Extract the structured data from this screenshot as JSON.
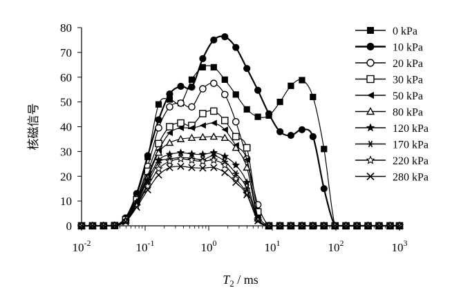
{
  "chart_data": {
    "type": "line",
    "title": "",
    "xlabel": "T2 / ms",
    "xlabel_parts": {
      "main": "T",
      "subscript": "2",
      "rest": " / ms"
    },
    "ylabel": "核磁信号",
    "x_scale": "log",
    "xlim": [
      0.01,
      1000
    ],
    "ylim": [
      0,
      80
    ],
    "x_ticks": [
      {
        "base": "10",
        "exp": "-2",
        "value": 0.01
      },
      {
        "base": "10",
        "exp": "-1",
        "value": 0.1
      },
      {
        "base": "10",
        "exp": "0",
        "value": 1
      },
      {
        "base": "10",
        "exp": "1",
        "value": 10
      },
      {
        "base": "10",
        "exp": "2",
        "value": 100
      },
      {
        "base": "10",
        "exp": "3",
        "value": 1000
      }
    ],
    "y_ticks": [
      "0",
      "10",
      "20",
      "30",
      "40",
      "50",
      "60",
      "70",
      "80"
    ],
    "grid": false,
    "legend_position": "right",
    "x": [
      0.01,
      0.0149,
      0.0222,
      0.0331,
      0.0494,
      0.0736,
      0.11,
      0.163,
      0.243,
      0.363,
      0.541,
      0.806,
      1.2,
      1.79,
      2.67,
      3.98,
      5.93,
      8.84,
      13.2,
      19.6,
      29.3,
      43.6,
      65,
      96.9,
      144,
      215,
      321,
      478,
      713,
      1000
    ],
    "series": [
      {
        "name": "0 kPa",
        "marker": "filled-square",
        "values": [
          0,
          0,
          0,
          0.1,
          2.8,
          12.2,
          27.8,
          49,
          51,
          49.5,
          59,
          64,
          64,
          59,
          53,
          47,
          44,
          44.5,
          50,
          56.5,
          58.8,
          52,
          31,
          0,
          0,
          0,
          0,
          0,
          0,
          0
        ]
      },
      {
        "name": "10 kPa",
        "marker": "filled-circle",
        "values": [
          0,
          0,
          0,
          0.1,
          3.2,
          13,
          28.3,
          42.8,
          53.2,
          56.3,
          56,
          67.5,
          75,
          76.3,
          72,
          63.5,
          54.7,
          45.2,
          38,
          36.5,
          38.8,
          36,
          15,
          0,
          0,
          0,
          0,
          0,
          0,
          0
        ]
      },
      {
        "name": "20 kPa",
        "marker": "open-circle",
        "values": [
          0,
          0,
          0,
          0.1,
          2.5,
          11,
          24,
          39.5,
          48,
          49.5,
          48,
          55.3,
          57.5,
          53,
          42,
          27,
          8.5,
          0,
          0,
          0,
          0,
          0,
          0,
          0,
          0,
          0,
          0,
          0,
          0,
          0
        ]
      },
      {
        "name": "30 kPa",
        "marker": "open-square",
        "values": [
          0,
          0,
          0,
          0.1,
          2.4,
          10.5,
          22,
          33.2,
          40,
          41.5,
          40.5,
          45.3,
          46.3,
          42.5,
          36,
          31.5,
          5.6,
          0,
          0,
          0,
          0,
          0,
          0,
          0,
          0,
          0,
          0,
          0,
          0,
          0
        ]
      },
      {
        "name": "50 kPa",
        "marker": "filled-triangle-left",
        "values": [
          0,
          0,
          0,
          0.1,
          2.2,
          10,
          20.5,
          30.5,
          37.5,
          39.5,
          39.5,
          40.5,
          41.5,
          38.8,
          32.5,
          26.7,
          3.5,
          0,
          0,
          0,
          0,
          0,
          0,
          0,
          0,
          0,
          0,
          0,
          0,
          0
        ]
      },
      {
        "name": "80 kPa",
        "marker": "open-triangle",
        "values": [
          0,
          0,
          0,
          0.1,
          2.1,
          9.5,
          19.5,
          29.5,
          33.5,
          35,
          35.5,
          35.8,
          36,
          35.5,
          31.5,
          23.5,
          3,
          0,
          0,
          0,
          0,
          0,
          0,
          0,
          0,
          0,
          0,
          0,
          0,
          0
        ]
      },
      {
        "name": "120 kPa",
        "marker": "filled-star",
        "values": [
          0,
          0,
          0,
          0.1,
          2,
          9,
          18.5,
          26.5,
          28.8,
          29.5,
          29,
          28.8,
          29.5,
          28,
          24.5,
          17.5,
          2.8,
          0,
          0,
          0,
          0,
          0,
          0,
          0,
          0,
          0,
          0,
          0,
          0,
          0
        ]
      },
      {
        "name": "170 kPa",
        "marker": "asterisk",
        "values": [
          0,
          0,
          0,
          0.1,
          1.8,
          8.5,
          17,
          25.5,
          27,
          27.5,
          27.3,
          26.7,
          28.3,
          26,
          21.2,
          15.2,
          2.5,
          0,
          0,
          0,
          0,
          0,
          0,
          0,
          0,
          0,
          0,
          0,
          0,
          0
        ]
      },
      {
        "name": "220 kPa",
        "marker": "open-star",
        "values": [
          0,
          0,
          0,
          0.1,
          1.7,
          8,
          16,
          23,
          26,
          27,
          26.5,
          26,
          26.5,
          24.5,
          19,
          13,
          2.2,
          0,
          0,
          0,
          0,
          0,
          0,
          0,
          0,
          0,
          0,
          0,
          0,
          0
        ]
      },
      {
        "name": "280 kPa",
        "marker": "x-cross",
        "values": [
          0,
          0,
          0,
          0.1,
          1.6,
          7.5,
          14.5,
          20.5,
          23.5,
          24,
          23.5,
          23.3,
          23.5,
          21.5,
          17.5,
          12.5,
          2,
          0,
          0,
          0,
          0,
          0,
          0,
          0,
          0,
          0,
          0,
          0,
          0,
          0
        ]
      }
    ]
  }
}
